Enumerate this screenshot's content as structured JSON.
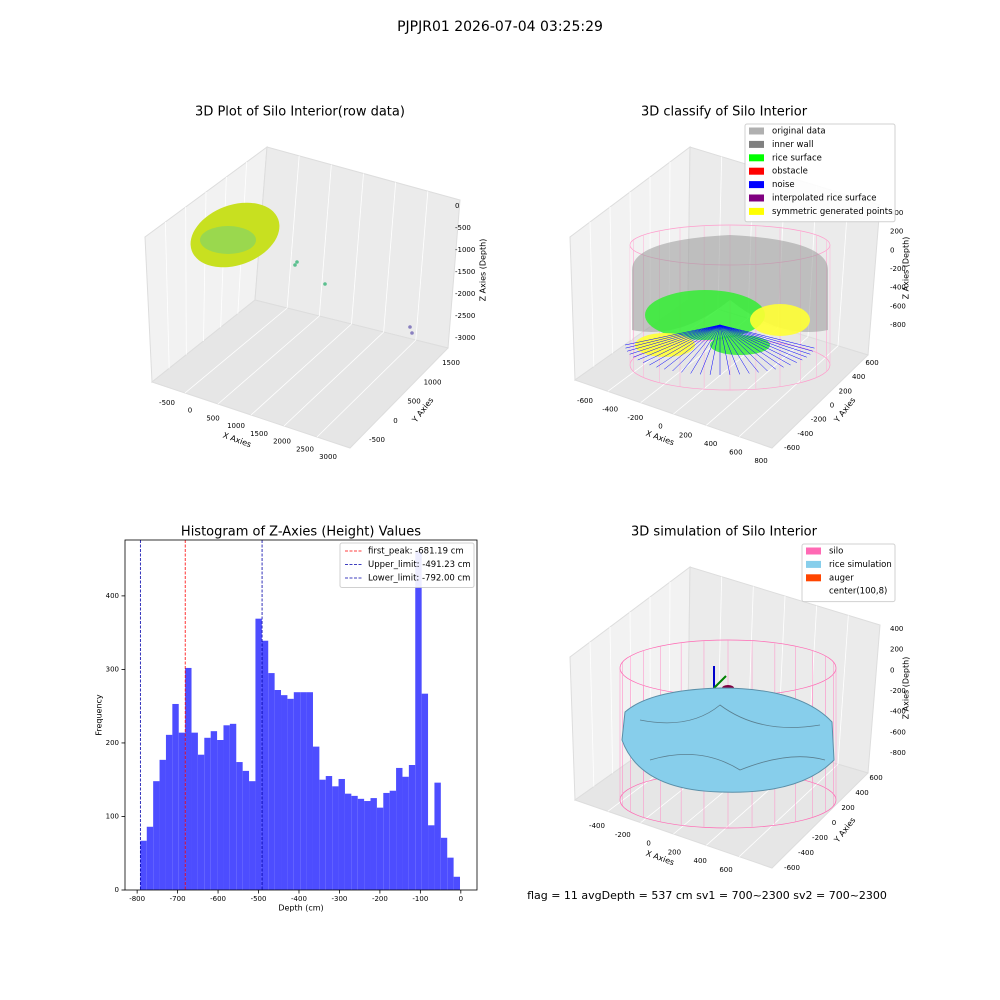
{
  "title": "PJPJR01 2026-07-04 03:25:29",
  "chart_data": [
    {
      "type": "scatter3d",
      "title": "3D Plot of Silo Interior(row data)",
      "x_label": "X Axies",
      "y_label": "Y Axies",
      "z_label": "Z Axies (Depth)",
      "xticks": [
        -500,
        0,
        500,
        1000,
        1500,
        2000,
        2500,
        3000
      ],
      "yticks": [
        -500,
        0,
        500,
        1000,
        1500
      ],
      "zticks": [
        0,
        -500,
        -1000,
        -1500,
        -2000,
        -2500,
        -3000
      ]
    },
    {
      "type": "scatter3d",
      "title": "3D classify of Silo Interior",
      "x_label": "X Axies",
      "y_label": "Y Axies",
      "z_label": "Z Axies (Depth)",
      "xticks": [
        -600,
        -400,
        -200,
        0,
        200,
        400,
        600,
        800
      ],
      "yticks": [
        -600,
        -400,
        -200,
        0,
        200,
        400,
        600
      ],
      "zticks": [
        400,
        200,
        0,
        -200,
        -400,
        -600,
        -800
      ],
      "legend": [
        {
          "name": "original data",
          "color": "#b0b0b0"
        },
        {
          "name": "inner wall",
          "color": "#808080"
        },
        {
          "name": "rice surface",
          "color": "#00ff00"
        },
        {
          "name": "obstacle",
          "color": "#ff0000"
        },
        {
          "name": "noise",
          "color": "#0000ff"
        },
        {
          "name": "interpolated rice surface",
          "color": "#800080"
        },
        {
          "name": "symmetric generated points",
          "color": "#ffff00"
        }
      ]
    },
    {
      "type": "histogram",
      "title": "Histogram of Z-Axies (Height) Values",
      "x_label": "Depth (cm)",
      "y_label": "Frequency",
      "color": "#4d4dff",
      "bins": [
        -792,
        -776.2,
        -760.4,
        -744.6,
        -728.8,
        -713,
        -697.2,
        -681.4,
        -665.6,
        -649.8,
        -634,
        -618.2,
        -602.4,
        -586.6,
        -570.8,
        -555,
        -539.2,
        -523.4,
        -507.6,
        -491.8,
        -476,
        -460.2,
        -444.4,
        -428.6,
        -412.8,
        -397,
        -381.2,
        -365.4,
        -349.6,
        -333.8,
        -318,
        -302.2,
        -286.4,
        -270.6,
        -254.8,
        -239,
        -223.2,
        -207.4,
        -191.6,
        -175.8,
        -160,
        -144.2,
        -128.4,
        -112.6,
        -96.8,
        -81,
        -65.2,
        -49.4,
        -33.6,
        -17.8,
        -2
      ],
      "counts": [
        67,
        86,
        148,
        177,
        211,
        253,
        214,
        302,
        214,
        184,
        207,
        216,
        204,
        224,
        226,
        174,
        162,
        148,
        369,
        339,
        295,
        272,
        265,
        260,
        269,
        269,
        269,
        195,
        150,
        155,
        141,
        151,
        131,
        128,
        124,
        121,
        125,
        112,
        132,
        135,
        166,
        154,
        170,
        460,
        267,
        88,
        146,
        71,
        44,
        18
      ],
      "xlim": [
        -830,
        40
      ],
      "ylim": [
        0,
        476
      ],
      "xticks": [
        -800,
        -700,
        -600,
        -500,
        -400,
        -300,
        -200,
        -100,
        0
      ],
      "yticks": [
        0,
        100,
        200,
        300,
        400
      ],
      "lines": [
        {
          "label": "first_peak: -681.19 cm",
          "value": -681.19,
          "color": "#ff0000"
        },
        {
          "label": "Upper_limit: -491.23 cm",
          "value": -491.23,
          "color": "#0000aa"
        },
        {
          "label": "Lower_limit: -792.00 cm",
          "value": -792.0,
          "color": "#0000aa"
        }
      ]
    },
    {
      "type": "surface3d",
      "title": "3D simulation of Silo Interior",
      "x_label": "X Axies",
      "y_label": "Y Axies",
      "z_label": "Z Axies (Depth)",
      "xticks": [
        -400,
        -200,
        0,
        200,
        400,
        600
      ],
      "yticks": [
        -600,
        -400,
        -200,
        0,
        200,
        400,
        600
      ],
      "zticks": [
        400,
        200,
        0,
        -200,
        -400,
        -600,
        -800
      ],
      "legend": [
        {
          "name": "silo",
          "color": "#ff69b4"
        },
        {
          "name": "rice simulation",
          "color": "#87ceeb"
        },
        {
          "name": "auger",
          "color": "#ff4500"
        },
        {
          "name": "center(100,8)"
        }
      ],
      "annotation": "flag = 11  avgDepth = 537 cm  sv1 = 700~2300  sv2 = 700~2300"
    }
  ]
}
